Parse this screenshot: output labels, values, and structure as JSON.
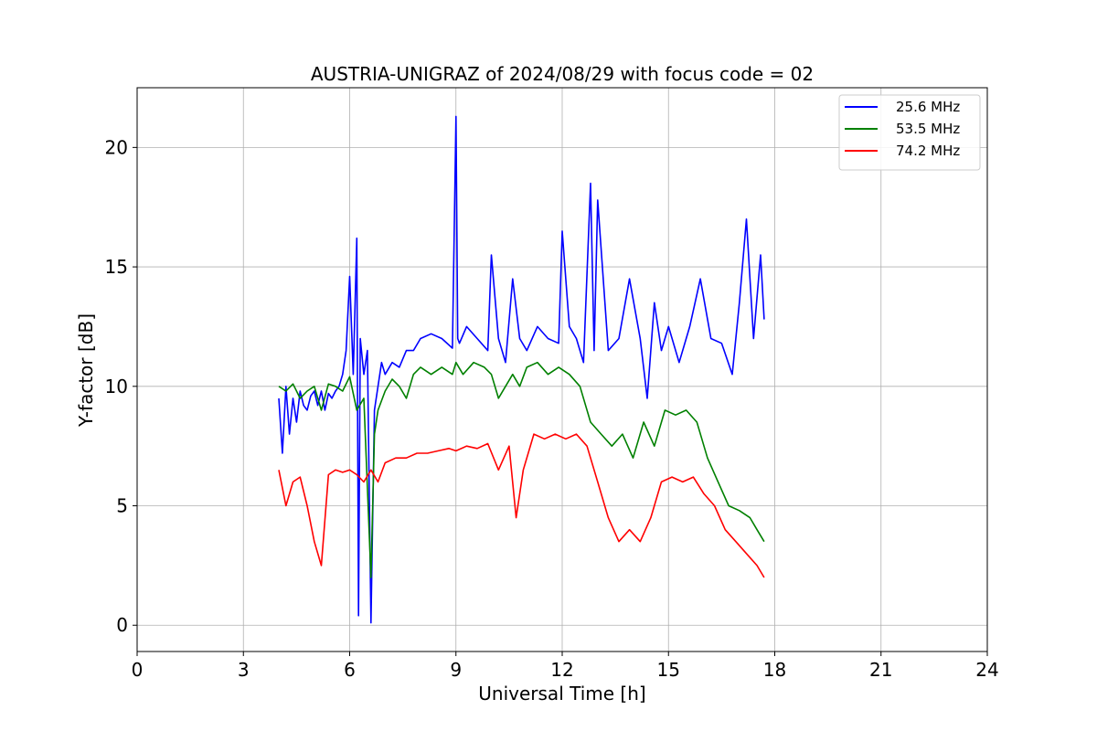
{
  "chart_data": {
    "type": "line",
    "title": "AUSTRIA-UNIGRAZ of 2024/08/29 with focus code = 02",
    "xlabel": "Universal Time [h]",
    "ylabel": "Y-factor [dB]",
    "xlim": [
      0,
      24
    ],
    "ylim": [
      -1.1,
      22.5
    ],
    "xticks": [
      0,
      3,
      6,
      9,
      12,
      15,
      18,
      21,
      24
    ],
    "yticks": [
      0,
      5,
      10,
      15,
      20
    ],
    "grid": true,
    "legend_position": "top-right",
    "series": [
      {
        "name": "25.6 MHz",
        "color": "#0000ff",
        "x": [
          4.0,
          4.1,
          4.2,
          4.3,
          4.4,
          4.5,
          4.6,
          4.7,
          4.8,
          4.9,
          5.0,
          5.1,
          5.2,
          5.3,
          5.4,
          5.5,
          5.6,
          5.7,
          5.8,
          5.9,
          6.0,
          6.1,
          6.2,
          6.25,
          6.3,
          6.4,
          6.5,
          6.6,
          6.7,
          6.8,
          6.9,
          7.0,
          7.2,
          7.4,
          7.6,
          7.8,
          8.0,
          8.3,
          8.6,
          8.9,
          9.0,
          9.05,
          9.1,
          9.3,
          9.6,
          9.9,
          10.0,
          10.2,
          10.4,
          10.6,
          10.8,
          11.0,
          11.3,
          11.6,
          11.9,
          12.0,
          12.2,
          12.4,
          12.6,
          12.8,
          12.9,
          13.0,
          13.3,
          13.6,
          13.9,
          14.2,
          14.4,
          14.6,
          14.8,
          15.0,
          15.3,
          15.6,
          15.9,
          16.2,
          16.5,
          16.8,
          17.0,
          17.2,
          17.4,
          17.6,
          17.7
        ],
        "y": [
          9.5,
          7.2,
          10.0,
          8.0,
          9.5,
          8.5,
          9.8,
          9.2,
          9.0,
          9.6,
          9.8,
          9.2,
          9.8,
          9.0,
          9.7,
          9.5,
          9.8,
          10.0,
          10.5,
          11.5,
          14.6,
          10.5,
          16.2,
          0.4,
          12.0,
          10.5,
          11.5,
          0.1,
          9.0,
          10.0,
          11.0,
          10.5,
          11.0,
          10.8,
          11.5,
          11.5,
          12.0,
          12.2,
          12.0,
          11.6,
          21.3,
          12.0,
          11.8,
          12.5,
          12.0,
          11.5,
          15.5,
          12.0,
          11.0,
          14.5,
          12.0,
          11.5,
          12.5,
          12.0,
          11.8,
          16.5,
          12.5,
          12.0,
          11.0,
          18.5,
          11.5,
          17.8,
          11.5,
          12.0,
          14.5,
          12.0,
          9.5,
          13.5,
          11.5,
          12.5,
          11.0,
          12.5,
          14.5,
          12.0,
          11.8,
          10.5,
          13.5,
          17.0,
          12.0,
          15.5,
          12.8
        ]
      },
      {
        "name": "53.5 MHz",
        "color": "#008000",
        "x": [
          4.0,
          4.2,
          4.4,
          4.6,
          4.8,
          5.0,
          5.2,
          5.4,
          5.6,
          5.8,
          6.0,
          6.2,
          6.4,
          6.6,
          6.7,
          6.8,
          7.0,
          7.2,
          7.4,
          7.6,
          7.8,
          8.0,
          8.3,
          8.6,
          8.9,
          9.0,
          9.2,
          9.5,
          9.8,
          10.0,
          10.2,
          10.4,
          10.6,
          10.8,
          11.0,
          11.3,
          11.6,
          11.9,
          12.2,
          12.5,
          12.8,
          13.1,
          13.4,
          13.7,
          14.0,
          14.3,
          14.6,
          14.9,
          15.2,
          15.5,
          15.8,
          16.1,
          16.4,
          16.7,
          17.0,
          17.3,
          17.5,
          17.7
        ],
        "y": [
          10.0,
          9.8,
          10.1,
          9.5,
          9.8,
          10.0,
          9.0,
          10.1,
          10.0,
          9.8,
          10.4,
          9.0,
          9.5,
          2.0,
          8.0,
          9.0,
          9.8,
          10.3,
          10.0,
          9.5,
          10.5,
          10.8,
          10.5,
          10.8,
          10.5,
          11.0,
          10.5,
          11.0,
          10.8,
          10.5,
          9.5,
          10.0,
          10.5,
          10.0,
          10.8,
          11.0,
          10.5,
          10.8,
          10.5,
          10.0,
          8.5,
          8.0,
          7.5,
          8.0,
          7.0,
          8.5,
          7.5,
          9.0,
          8.8,
          9.0,
          8.5,
          7.0,
          6.0,
          5.0,
          4.8,
          4.5,
          4.0,
          3.5
        ]
      },
      {
        "name": "74.2 MHz",
        "color": "#ff0000",
        "x": [
          4.0,
          4.2,
          4.4,
          4.6,
          4.8,
          5.0,
          5.2,
          5.4,
          5.6,
          5.8,
          6.0,
          6.2,
          6.4,
          6.6,
          6.8,
          7.0,
          7.3,
          7.6,
          7.9,
          8.2,
          8.5,
          8.8,
          9.0,
          9.3,
          9.6,
          9.9,
          10.2,
          10.5,
          10.7,
          10.9,
          11.2,
          11.5,
          11.8,
          12.1,
          12.4,
          12.7,
          13.0,
          13.3,
          13.6,
          13.9,
          14.2,
          14.5,
          14.8,
          15.1,
          15.4,
          15.7,
          16.0,
          16.3,
          16.6,
          16.9,
          17.2,
          17.5,
          17.7
        ],
        "y": [
          6.5,
          5.0,
          6.0,
          6.2,
          5.0,
          3.5,
          2.5,
          6.3,
          6.5,
          6.4,
          6.5,
          6.3,
          6.0,
          6.5,
          6.0,
          6.8,
          7.0,
          7.0,
          7.2,
          7.2,
          7.3,
          7.4,
          7.3,
          7.5,
          7.4,
          7.6,
          6.5,
          7.5,
          4.5,
          6.5,
          8.0,
          7.8,
          8.0,
          7.8,
          8.0,
          7.5,
          6.0,
          4.5,
          3.5,
          4.0,
          3.5,
          4.5,
          6.0,
          6.2,
          6.0,
          6.2,
          5.5,
          5.0,
          4.0,
          3.5,
          3.0,
          2.5,
          2.0
        ]
      }
    ]
  }
}
